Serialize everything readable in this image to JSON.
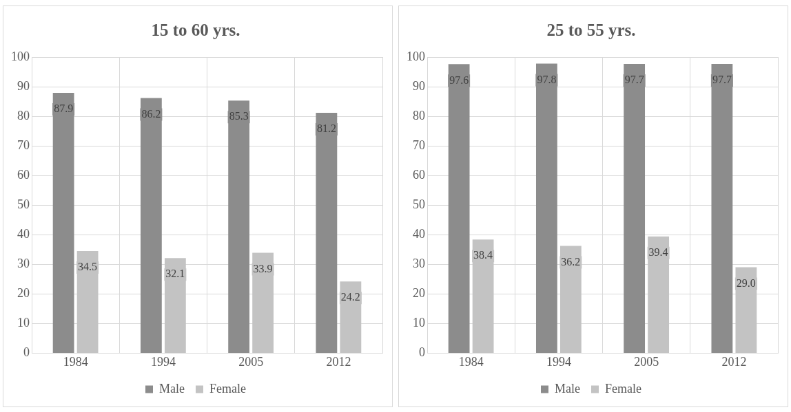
{
  "chart_data": [
    {
      "type": "bar",
      "title": "15 to 60 yrs.",
      "categories": [
        "1984",
        "1994",
        "2005",
        "2012"
      ],
      "series": [
        {
          "name": "Male",
          "color": "#8c8c8c",
          "values": [
            87.9,
            86.2,
            85.3,
            81.2
          ],
          "value_labels": [
            "87.9",
            "86.2",
            "85.3",
            "81.2"
          ]
        },
        {
          "name": "Female",
          "color": "#c3c3c3",
          "values": [
            34.5,
            32.1,
            33.9,
            24.2
          ],
          "value_labels": [
            "34.5",
            "32.1",
            "33.9",
            "24.2"
          ]
        }
      ],
      "ylim": [
        0,
        100
      ],
      "yticks": [
        0,
        10,
        20,
        30,
        40,
        50,
        60,
        70,
        80,
        90,
        100
      ],
      "grid": true,
      "legend": "bottom"
    },
    {
      "type": "bar",
      "title": "25 to 55 yrs.",
      "categories": [
        "1984",
        "1994",
        "2005",
        "2012"
      ],
      "series": [
        {
          "name": "Male",
          "color": "#8c8c8c",
          "values": [
            97.6,
            97.8,
            97.7,
            97.7
          ],
          "value_labels": [
            "97.6",
            "97.8",
            "97.7",
            "97.7"
          ]
        },
        {
          "name": "Female",
          "color": "#c3c3c3",
          "values": [
            38.4,
            36.2,
            39.4,
            29.0
          ],
          "value_labels": [
            "38.4",
            "36.2",
            "39.4",
            "29.0"
          ]
        }
      ],
      "ylim": [
        0,
        100
      ],
      "yticks": [
        0,
        10,
        20,
        30,
        40,
        50,
        60,
        70,
        80,
        90,
        100
      ],
      "grid": true,
      "legend": "bottom"
    }
  ]
}
